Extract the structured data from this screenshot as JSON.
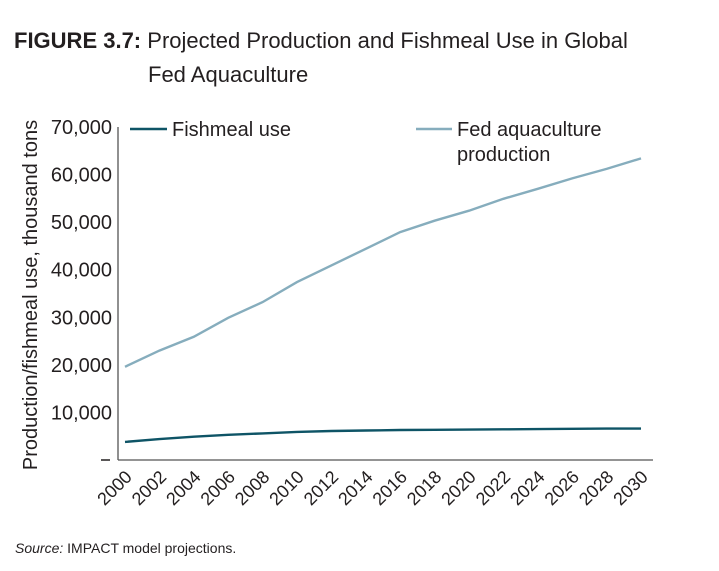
{
  "figure_label": "FIGURE 3.7:",
  "title_line1": "Projected Production and Fishmeal Use in Global",
  "title_line2": "Fed Aquaculture",
  "source_label": "Source:",
  "source_text": " IMPACT model projections.",
  "chart_data": {
    "type": "line",
    "ylabel": "Production/fishmeal use, thousand tons",
    "xlabel": "",
    "ylim": [
      0,
      70000
    ],
    "yticks": [
      "10,000",
      "20,000",
      "30,000",
      "40,000",
      "50,000",
      "60,000",
      "70,000"
    ],
    "ytick_values": [
      10000,
      20000,
      30000,
      40000,
      50000,
      60000,
      70000
    ],
    "x": [
      2000,
      2002,
      2004,
      2006,
      2008,
      2010,
      2012,
      2014,
      2016,
      2018,
      2020,
      2022,
      2024,
      2026,
      2028,
      2030
    ],
    "xticks": [
      "2000",
      "2002",
      "2004",
      "2006",
      "2008",
      "2010",
      "2012",
      "2014",
      "2016",
      "2018",
      "2020",
      "2022",
      "2024",
      "2026",
      "2028",
      "2030"
    ],
    "grid": false,
    "legend_position": "top",
    "series": [
      {
        "name": "Fishmeal use",
        "color": "#0e5466",
        "values": [
          3800,
          4400,
          4900,
          5300,
          5600,
          5900,
          6100,
          6200,
          6300,
          6350,
          6400,
          6450,
          6500,
          6550,
          6600,
          6600
        ]
      },
      {
        "name": "Fed aquaculture production",
        "color": "#86adbd",
        "values": [
          19600,
          23000,
          25900,
          29900,
          33200,
          37400,
          40900,
          44400,
          47900,
          50300,
          52400,
          54900,
          57000,
          59200,
          61200,
          63400
        ]
      }
    ]
  }
}
